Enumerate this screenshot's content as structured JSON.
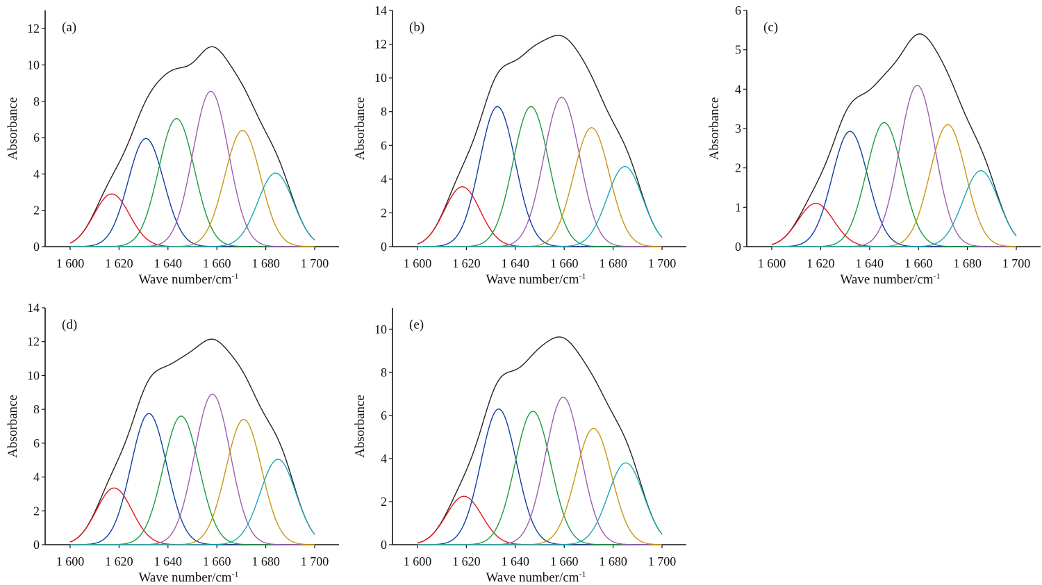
{
  "chart_data": [
    {
      "type": "line",
      "panel_label": "(a)",
      "xlabel": "Wave number/cm",
      "xlabel_superscript": "-1",
      "ylabel": "Absorbance",
      "xlim": [
        1590,
        1710
      ],
      "ylim": [
        0,
        13
      ],
      "xticks": [
        1600,
        1620,
        1640,
        1660,
        1680,
        1700
      ],
      "xtick_labels": [
        "1 600",
        "1 620",
        "1 640",
        "1 660",
        "1 680",
        "1 700"
      ],
      "yticks": [
        0,
        2,
        4,
        6,
        8,
        10,
        12
      ],
      "curve_range": [
        1600,
        1700
      ],
      "sigma": 7.3,
      "components": [
        {
          "name": "band-1",
          "color": "#e0141e",
          "center": 1617,
          "amplitude": 2.9
        },
        {
          "name": "band-2",
          "color": "#0b3fa0",
          "center": 1631,
          "amplitude": 5.95
        },
        {
          "name": "band-3",
          "color": "#1a9a3e",
          "center": 1643.5,
          "amplitude": 7.05
        },
        {
          "name": "band-4",
          "color": "#9c5cb0",
          "center": 1657.5,
          "amplitude": 8.55
        },
        {
          "name": "band-5",
          "color": "#c8960e",
          "center": 1670.5,
          "amplitude": 6.4
        },
        {
          "name": "band-6",
          "color": "#17a8b8",
          "center": 1684,
          "amplitude": 4.05
        }
      ],
      "sum_color": "#222222",
      "sum_peak": {
        "x": 1657.5,
        "y": 11.4
      }
    },
    {
      "type": "line",
      "panel_label": "(b)",
      "xlabel": "Wave number/cm",
      "xlabel_superscript": "-1",
      "ylabel": "Absorbance",
      "xlim": [
        1590,
        1710
      ],
      "ylim": [
        0,
        14
      ],
      "xticks": [
        1600,
        1620,
        1640,
        1660,
        1680,
        1700
      ],
      "xtick_labels": [
        "1 600",
        "1 620",
        "1 640",
        "1 660",
        "1 680",
        "1 700"
      ],
      "yticks": [
        0,
        2,
        4,
        6,
        8,
        10,
        12,
        14
      ],
      "curve_range": [
        1600,
        1700
      ],
      "sigma": 7.3,
      "components": [
        {
          "name": "band-1",
          "color": "#e0141e",
          "center": 1618.3,
          "amplitude": 3.55
        },
        {
          "name": "band-2",
          "color": "#0b3fa0",
          "center": 1632.7,
          "amplitude": 8.3
        },
        {
          "name": "band-3",
          "color": "#1a9a3e",
          "center": 1646.4,
          "amplitude": 8.3
        },
        {
          "name": "band-4",
          "color": "#9c5cb0",
          "center": 1659,
          "amplitude": 8.85
        },
        {
          "name": "band-5",
          "color": "#c8960e",
          "center": 1671.2,
          "amplitude": 7.05
        },
        {
          "name": "band-6",
          "color": "#17a8b8",
          "center": 1684.8,
          "amplitude": 4.75
        }
      ],
      "sum_color": "#222222",
      "sum_peak": {
        "x": 1657,
        "y": 12.75
      }
    },
    {
      "type": "line",
      "panel_label": "(c)",
      "xlabel": "Wave number/cm",
      "xlabel_superscript": "-1",
      "ylabel": "Absorbance",
      "xlim": [
        1590,
        1710
      ],
      "ylim": [
        0,
        6
      ],
      "xticks": [
        1600,
        1620,
        1640,
        1660,
        1680,
        1700
      ],
      "xtick_labels": [
        "1 600",
        "1 620",
        "1 640",
        "1 660",
        "1 680",
        "1 700"
      ],
      "yticks": [
        0,
        1,
        2,
        3,
        4,
        5,
        6
      ],
      "curve_range": [
        1600,
        1700
      ],
      "sigma": 7.3,
      "components": [
        {
          "name": "band-1",
          "color": "#e0141e",
          "center": 1618,
          "amplitude": 1.1
        },
        {
          "name": "band-2",
          "color": "#0b3fa0",
          "center": 1632,
          "amplitude": 2.93
        },
        {
          "name": "band-3",
          "color": "#1a9a3e",
          "center": 1646,
          "amplitude": 3.15
        },
        {
          "name": "band-4",
          "color": "#9c5cb0",
          "center": 1659.5,
          "amplitude": 4.1
        },
        {
          "name": "band-5",
          "color": "#c8960e",
          "center": 1672,
          "amplitude": 3.1
        },
        {
          "name": "band-6",
          "color": "#17a8b8",
          "center": 1685.5,
          "amplitude": 1.93
        }
      ],
      "sum_color": "#222222",
      "sum_peak": {
        "x": 1660.5,
        "y": 5.2
      }
    },
    {
      "type": "line",
      "panel_label": "(d)",
      "xlabel": "Wave number/cm",
      "xlabel_superscript": "-1",
      "ylabel": "Absorbance",
      "xlim": [
        1590,
        1710
      ],
      "ylim": [
        0,
        14
      ],
      "xticks": [
        1600,
        1620,
        1640,
        1660,
        1680,
        1700
      ],
      "xtick_labels": [
        "1 600",
        "1 620",
        "1 640",
        "1 660",
        "1 680",
        "1 700"
      ],
      "yticks": [
        0,
        2,
        4,
        6,
        8,
        10,
        12,
        14
      ],
      "curve_range": [
        1600,
        1700
      ],
      "sigma": 7.3,
      "components": [
        {
          "name": "band-1",
          "color": "#e0141e",
          "center": 1618,
          "amplitude": 3.35
        },
        {
          "name": "band-2",
          "color": "#0b3fa0",
          "center": 1632.2,
          "amplitude": 7.75
        },
        {
          "name": "band-3",
          "color": "#1a9a3e",
          "center": 1645.4,
          "amplitude": 7.6
        },
        {
          "name": "band-4",
          "color": "#9c5cb0",
          "center": 1658.2,
          "amplitude": 8.9
        },
        {
          "name": "band-5",
          "color": "#c8960e",
          "center": 1671,
          "amplitude": 7.4
        },
        {
          "name": "band-6",
          "color": "#17a8b8",
          "center": 1685,
          "amplitude": 5.05
        }
      ],
      "sum_color": "#222222",
      "sum_peak": {
        "x": 1657.5,
        "y": 12.35
      }
    },
    {
      "type": "line",
      "panel_label": "(e)",
      "xlabel": "Wave number/cm",
      "xlabel_superscript": "-1",
      "ylabel": "Absorbance",
      "xlim": [
        1590,
        1710
      ],
      "ylim": [
        0,
        11
      ],
      "xticks": [
        1600,
        1620,
        1640,
        1660,
        1680,
        1700
      ],
      "xtick_labels": [
        "1 600",
        "1 620",
        "1 640",
        "1 660",
        "1 680",
        "1 700"
      ],
      "yticks": [
        0,
        2,
        4,
        6,
        8,
        10
      ],
      "curve_range": [
        1600,
        1700
      ],
      "sigma": 7.3,
      "components": [
        {
          "name": "band-1",
          "color": "#e0141e",
          "center": 1619,
          "amplitude": 2.25
        },
        {
          "name": "band-2",
          "color": "#0b3fa0",
          "center": 1633.2,
          "amplitude": 6.3
        },
        {
          "name": "band-3",
          "color": "#1a9a3e",
          "center": 1647.2,
          "amplitude": 6.2
        },
        {
          "name": "band-4",
          "color": "#9c5cb0",
          "center": 1659.6,
          "amplitude": 6.85
        },
        {
          "name": "band-5",
          "color": "#c8960e",
          "center": 1672,
          "amplitude": 5.4
        },
        {
          "name": "band-6",
          "color": "#17a8b8",
          "center": 1685.2,
          "amplitude": 3.8
        }
      ],
      "sum_color": "#222222",
      "sum_peak": {
        "x": 1657.8,
        "y": 9.65
      }
    }
  ]
}
